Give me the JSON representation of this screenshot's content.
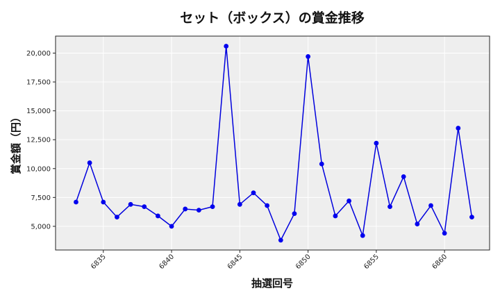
{
  "chart_data": {
    "type": "line",
    "title": "セット（ボックス）の賞金推移",
    "xlabel": "抽選回号",
    "ylabel": "賞金額（円）",
    "x": [
      6833,
      6834,
      6835,
      6836,
      6837,
      6838,
      6839,
      6840,
      6841,
      6842,
      6843,
      6844,
      6845,
      6846,
      6847,
      6848,
      6849,
      6850,
      6851,
      6852,
      6853,
      6854,
      6855,
      6856,
      6857,
      6858,
      6859,
      6860,
      6861,
      6862
    ],
    "series": [
      {
        "name": "セット（ボックス）",
        "color": "#0000dd",
        "values": [
          7100,
          10500,
          7100,
          5800,
          6900,
          6700,
          5900,
          5000,
          6500,
          6400,
          6700,
          20600,
          6900,
          7900,
          6800,
          3800,
          6100,
          19700,
          10400,
          5900,
          7200,
          4200,
          12200,
          6700,
          9300,
          5200,
          6800,
          4400,
          13500,
          5800
        ]
      }
    ],
    "xticks": [
      6835,
      6840,
      6845,
      6850,
      6855,
      6860
    ],
    "yticks": [
      5000,
      7500,
      10000,
      12500,
      15000,
      17500,
      20000
    ],
    "ytick_labels": [
      "5,000",
      "7,500",
      "10,000",
      "12,500",
      "15,000",
      "17,500",
      "20,000"
    ],
    "xlim": [
      6831.5,
      6863.3
    ],
    "ylim": [
      2950,
      21470
    ],
    "grid": true,
    "legend": null,
    "colors": {
      "plot_background": "#eeeeee",
      "grid": "#ffffff",
      "line": "#0000dd",
      "marker": "#0000ee"
    }
  }
}
